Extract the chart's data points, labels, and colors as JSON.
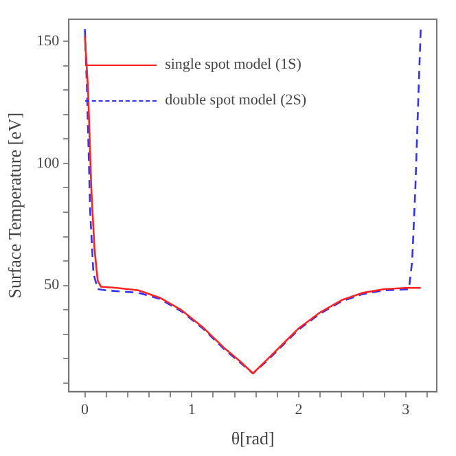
{
  "chart_data": {
    "type": "line",
    "xlabel": "θ[rad]",
    "ylabel": "Surface Temperature [eV]",
    "xlim": [
      -0.15,
      3.29
    ],
    "ylim": [
      6.5,
      159
    ],
    "xticks": [
      0,
      {
        "value": 0.2,
        "label": null
      },
      {
        "value": 0.4,
        "label": null
      },
      {
        "value": 0.6,
        "label": null
      },
      {
        "value": 0.8,
        "label": null
      },
      1,
      {
        "value": 1.2,
        "label": null
      },
      {
        "value": 1.4,
        "label": null
      },
      {
        "value": 1.6,
        "label": null
      },
      {
        "value": 1.8,
        "label": null
      },
      2,
      {
        "value": 2.2,
        "label": null
      },
      {
        "value": 2.4,
        "label": null
      },
      {
        "value": 2.6,
        "label": null
      },
      {
        "value": 2.8,
        "label": null
      },
      3,
      {
        "value": 3.2,
        "label": null
      }
    ],
    "yticks": [
      {
        "value": 10,
        "label": null
      },
      {
        "value": 20,
        "label": null
      },
      {
        "value": 30,
        "label": null
      },
      {
        "value": 40,
        "label": null
      },
      50,
      {
        "value": 60,
        "label": null
      },
      {
        "value": 70,
        "label": null
      },
      {
        "value": 80,
        "label": null
      },
      {
        "value": 90,
        "label": null
      },
      100,
      {
        "value": 110,
        "label": null
      },
      {
        "value": 120,
        "label": null
      },
      {
        "value": 130,
        "label": null
      },
      {
        "value": 140,
        "label": null
      },
      150
    ],
    "grid": false,
    "legend": "top left",
    "marker": "none",
    "series": [
      {
        "name": "single spot model (1S)",
        "color": "#ff2020",
        "line_style": "solid",
        "x": [
          0,
          0.03,
          0.06,
          0.09,
          0.12,
          0.15,
          0.3,
          0.5,
          0.7,
          0.9,
          1.1,
          1.3,
          1.45,
          1.571,
          1.7,
          1.85,
          2.0,
          2.2,
          2.4,
          2.6,
          2.8,
          3.0,
          3.14
        ],
        "values": [
          152,
          130,
          90,
          65,
          52,
          49.5,
          49,
          48,
          45,
          40,
          33,
          24.5,
          19,
          14,
          19.5,
          26,
          32.5,
          39,
          44,
          47,
          48.5,
          49,
          49
        ]
      },
      {
        "name": "double spot model (2S)",
        "color": "#3030ff",
        "line_style": "dashed",
        "x": [
          0,
          0.02,
          0.05,
          0.08,
          0.12,
          0.2,
          0.5,
          0.7,
          0.9,
          1.1,
          1.3,
          1.45,
          1.571,
          1.7,
          1.85,
          2.0,
          2.2,
          2.4,
          2.6,
          2.8,
          3.03,
          3.06,
          3.09,
          3.12,
          3.14
        ],
        "values": [
          155,
          130,
          80,
          55,
          48.5,
          48,
          47,
          44.5,
          39.5,
          32.5,
          24,
          18.5,
          14,
          19,
          25.5,
          32,
          38.5,
          43.5,
          46.5,
          48,
          48.5,
          60,
          90,
          130,
          155
        ]
      }
    ]
  }
}
